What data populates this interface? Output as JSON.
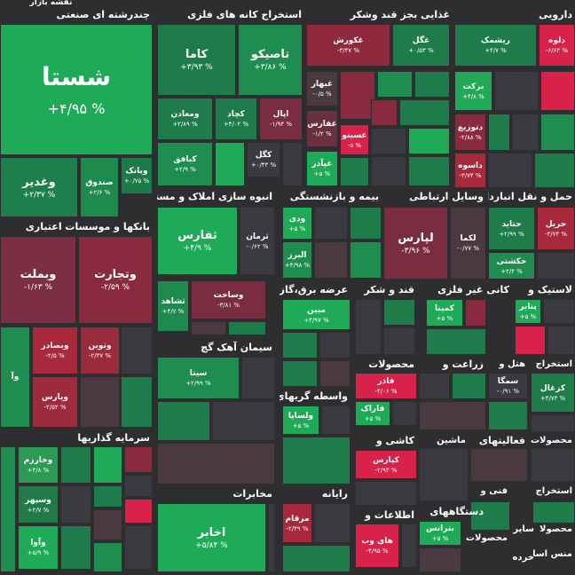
{
  "header_label": "نقشه بازار",
  "sectors": [
    {
      "title": "چندرشته ای صنعتی",
      "tiles": [
        {
          "symbol": "شستا",
          "change": "+۴/۹۵ %",
          "color": "#1faa58"
        },
        {
          "symbol": "وبانک",
          "change": "+۰/۷۵ %",
          "color": "#1c7a48"
        },
        {
          "symbol": "صندوق",
          "change": "+۲/۶ %",
          "color": "#1e8a4e"
        },
        {
          "symbol": "وغدیر",
          "change": "+۲/۳۷ %",
          "color": "#1f7f4c"
        }
      ]
    },
    {
      "title": "بانکها و موسسات اعتباری",
      "tiles": [
        {
          "symbol": "وبملت",
          "change": "-۱/۶۳ %",
          "color": "#7c2e44"
        },
        {
          "symbol": "وتجارت",
          "change": "-۲/۵۹ %",
          "color": "#8a2a3e"
        },
        {
          "symbol": "وتوین",
          "change": "-۲/۳۷ %",
          "color": "#9b2a3c"
        },
        {
          "symbol": "وبصادر",
          "change": "-۲/۵ %",
          "color": "#a8283c"
        },
        {
          "symbol": "وپارس",
          "change": "-۲/۵۲ %",
          "color": "#9e2a3e"
        },
        {
          "symbol": "وآ",
          "color": "#1f8c50"
        }
      ]
    },
    {
      "title": "سرمایه گذاریها",
      "tiles": [
        {
          "symbol": "وخارزم",
          "change": "+۴/۸ %",
          "color": "#2a9a55"
        },
        {
          "symbol": "وسپهر",
          "change": "+۲/۷ %",
          "color": "#237a48"
        },
        {
          "symbol": "وآوا",
          "change": "+۵/۹ %",
          "color": "#1faa58"
        }
      ]
    },
    {
      "title": "استخراج کانه های فلزی",
      "tiles": [
        {
          "symbol": "کاما",
          "change": "+۳/۹۳ %",
          "color": "#1e7c4a"
        },
        {
          "symbol": "تاصیکو",
          "change": "+۳/۸۶ %",
          "color": "#1f8c50"
        },
        {
          "symbol": "ومعادن",
          "change": "+۲/۸۹ %",
          "color": "#1e7c4a"
        },
        {
          "symbol": "کچاد",
          "change": "+۴/۰۲ %",
          "color": "#1e7c4a"
        },
        {
          "symbol": "اپال",
          "change": "-۱/۹۴ %",
          "color": "#7a2c40"
        },
        {
          "symbol": "کبافق",
          "change": "+۲/۹ %",
          "color": "#1f8c50"
        },
        {
          "symbol": "کگل",
          "change": "+۰/۴۳ %",
          "color": "#3a3a40"
        }
      ]
    },
    {
      "title": "غذایی بجز قند وشکر",
      "tiles": [
        {
          "symbol": "غکورش",
          "change": "-۳/۴۷ %",
          "color": "#8f2a3e"
        },
        {
          "symbol": "غگل",
          "change": "+۰/۵۳ %",
          "color": "#1e7c4a"
        },
        {
          "symbol": "غبهار",
          "change": "-۰/۵ %",
          "color": "#4a3a40"
        },
        {
          "symbol": "غفارس",
          "change": "-۱/۲ %",
          "color": "#6a3040"
        },
        {
          "symbol": "غسینو",
          "change": "-۵ %",
          "color": "#d9224a"
        },
        {
          "symbol": "غپآذر",
          "change": "+۵ %",
          "color": "#1faa58"
        }
      ]
    },
    {
      "title": "دارویی",
      "tiles": [
        {
          "symbol": "ریشمک",
          "change": "+۴/۷ %",
          "color": "#1e7c4a"
        },
        {
          "symbol": "دلوه",
          "change": "-۶/۶۳ %",
          "color": "#d9224a"
        },
        {
          "symbol": "برکت",
          "change": "+۴/۸ %",
          "color": "#1faa58"
        },
        {
          "symbol": "دتوزیع",
          "change": "-۲/۸۸ %",
          "color": "#8a2a3e"
        },
        {
          "symbol": "داسوه",
          "change": "-۳/۷۴ %",
          "color": "#a8283c"
        }
      ]
    },
    {
      "title": "انبوه سازی املاک و مستغلات",
      "tiles": [
        {
          "symbol": "ثفارس",
          "change": "+۴/۹ %",
          "color": "#1faa58"
        },
        {
          "symbol": "ثرمان",
          "change": "-۰/۶۲ %",
          "color": "#3a3a40"
        },
        {
          "symbol": "ثشاهد",
          "change": "+۴/۷ %",
          "color": "#1e8a4e"
        },
        {
          "symbol": "وساخت",
          "change": "-۳/۸۱ %",
          "color": "#7a2c40"
        }
      ]
    },
    {
      "title": "بیمه و بازنشستگی",
      "tiles": [
        {
          "symbol": "ودی",
          "change": "+۵ %",
          "color": "#1faa58"
        },
        {
          "symbol": "البرز",
          "change": "+۴/۹۸ %",
          "color": "#1f8c50"
        }
      ]
    },
    {
      "title": "وسایل ارتباطی",
      "tiles": [
        {
          "symbol": "لپارس",
          "change": "-۳/۹۶ %",
          "color": "#7a2c40"
        },
        {
          "symbol": "لکما",
          "change": "-۰/۷۷ %",
          "color": "#4a3a40"
        }
      ]
    },
    {
      "title": "حمل و نقل انبارداری و",
      "tiles": [
        {
          "symbol": "حتاید",
          "change": "+۲/۹۹ %",
          "color": "#1e7c4a"
        },
        {
          "symbol": "حریل",
          "change": "-۴/۷۴ %",
          "color": "#a8283c"
        },
        {
          "symbol": "حکشتی",
          "change": "+۲/۴ %",
          "color": "#1f8c50"
        }
      ]
    },
    {
      "title": "عرضه برق،گاز،بخار",
      "tiles": [
        {
          "symbol": "مبین",
          "change": "+۴/۹۷ %",
          "color": "#1faa58"
        }
      ]
    },
    {
      "title": "قند و شکر",
      "tiles": []
    },
    {
      "title": "کانی غیر فلزی",
      "tiles": [
        {
          "symbol": "کمینا",
          "change": "+۵ %",
          "color": "#1faa58"
        }
      ]
    },
    {
      "title": "لاستیک و",
      "tiles": [
        {
          "symbol": "پتایر",
          "change": "+۵ %",
          "color": "#1faa58"
        }
      ]
    },
    {
      "title": "سیمان آهک گچ",
      "tiles": [
        {
          "symbol": "سیتا",
          "change": "+۲/۹۹ %",
          "color": "#1f8c50"
        }
      ]
    },
    {
      "title": "محصولات",
      "tiles": [
        {
          "symbol": "فاذر",
          "change": "-۴/۰۶ %",
          "color": "#d9224a"
        },
        {
          "symbol": "فاراک",
          "change": "+۵ %",
          "color": "#1faa58"
        }
      ]
    },
    {
      "title": "زراعت و",
      "tiles": []
    },
    {
      "title": "هتل و",
      "tiles": [
        {
          "symbol": "سمگا",
          "change": "-۰/۹۱ %",
          "color": "#3a3a40"
        }
      ]
    },
    {
      "title": "استخراج",
      "tiles": [
        {
          "symbol": "کزغال",
          "change": "+۴/۷۳ %",
          "color": "#1e7c4a"
        }
      ]
    },
    {
      "title": "واسطه گریهای",
      "tiles": [
        {
          "symbol": "ولساپا",
          "change": "+۵ %",
          "color": "#1faa58"
        }
      ]
    },
    {
      "title": "کاشی و",
      "tiles": [
        {
          "symbol": "کپارس",
          "change": "-۲/۹۳ %",
          "color": "#d9224a"
        }
      ]
    },
    {
      "title": "ماشین",
      "tiles": []
    },
    {
      "title": "فعالیتهای",
      "tiles": []
    },
    {
      "title": "محصولات",
      "tiles": []
    },
    {
      "title": "مخابرات",
      "tiles": [
        {
          "symbol": "اخابر",
          "change": "+۵/۸۴ %",
          "color": "#1faa58"
        }
      ]
    },
    {
      "title": "رایانه",
      "tiles": [
        {
          "symbol": "مرقام",
          "change": "-۲/۴۹ %",
          "color": "#a8283c"
        }
      ]
    },
    {
      "title": "فنی و",
      "tiles": []
    },
    {
      "title": "استخراج",
      "tiles": []
    },
    {
      "title": "اطلاعات و",
      "tiles": [
        {
          "symbol": "های وب",
          "change": "-۴/۹۵ %",
          "color": "#d9224a"
        }
      ]
    },
    {
      "title": "دستگاههای",
      "tiles": [
        {
          "symbol": "بترانس",
          "change": "+۵ %",
          "color": "#1faa58"
        }
      ]
    },
    {
      "title": "محصولات",
      "tiles": []
    },
    {
      "title": "سایر",
      "tiles": []
    },
    {
      "title": "خرده",
      "tiles": []
    },
    {
      "title": "محصولا",
      "tiles": []
    },
    {
      "title": "منس اسا",
      "tiles": []
    }
  ]
}
